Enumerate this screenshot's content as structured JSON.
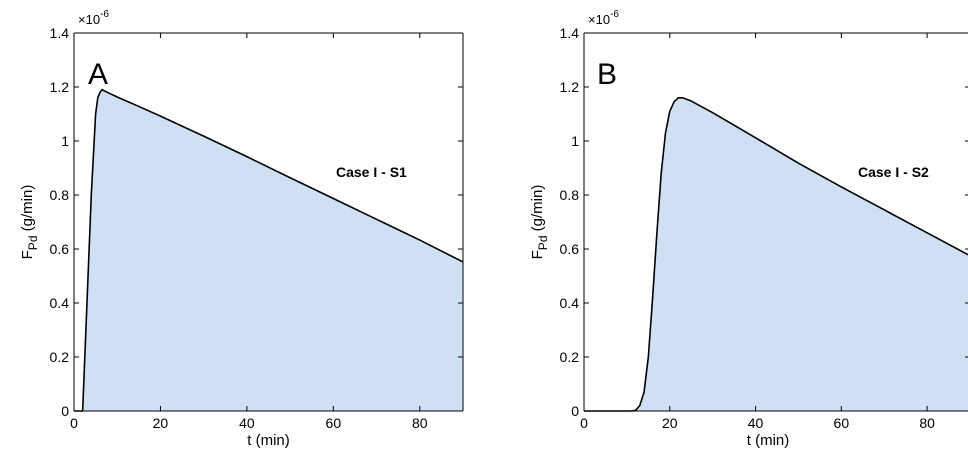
{
  "chart_data": [
    {
      "type": "area",
      "panel_label": "A",
      "annotation": "Case I - S1",
      "xlabel": "t  (min)",
      "ylabel_main": "F",
      "ylabel_sub": "Pd",
      "ylabel_unit": " (g/min)",
      "y_exponent_base": "×10",
      "y_exponent": "-6",
      "xlim": [
        0,
        90
      ],
      "ylim": [
        0,
        1.4
      ],
      "xticks": [
        0,
        20,
        40,
        60,
        80
      ],
      "yticks": [
        0,
        0.2,
        0.4,
        0.6,
        0.8,
        1,
        1.2,
        1.4
      ],
      "xtick_labels": [
        "0",
        "20",
        "40",
        "60",
        "80"
      ],
      "ytick_labels": [
        "0",
        "0.2",
        "0.4",
        "0.6",
        "0.8",
        "1",
        "1.2",
        "1.4"
      ],
      "fill_color": "#cfe0f5",
      "line_color": "#000000",
      "x": [
        2,
        3,
        4,
        5,
        5.5,
        6,
        6.5,
        8,
        10,
        15,
        20,
        25,
        30,
        40,
        50,
        60,
        70,
        80,
        90
      ],
      "y": [
        0,
        0.4,
        0.8,
        1.1,
        1.16,
        1.18,
        1.19,
        1.178,
        1.163,
        1.128,
        1.092,
        1.055,
        1.018,
        0.942,
        0.864,
        0.787,
        0.71,
        0.633,
        0.552
      ]
    },
    {
      "type": "area",
      "panel_label": "B",
      "annotation": "Case I - S2",
      "xlabel": "t  (min)",
      "ylabel_main": "F",
      "ylabel_sub": "Pd",
      "ylabel_unit": " (g/min)",
      "y_exponent_base": "×10",
      "y_exponent": "-6",
      "xlim": [
        0,
        90
      ],
      "ylim": [
        0,
        1.4
      ],
      "xticks": [
        0,
        20,
        40,
        60,
        80
      ],
      "yticks": [
        0,
        0.2,
        0.4,
        0.6,
        0.8,
        1,
        1.2,
        1.4
      ],
      "xtick_labels": [
        "0",
        "20",
        "40",
        "60",
        "80"
      ],
      "ytick_labels": [
        "0",
        "0.2",
        "0.4",
        "0.6",
        "0.8",
        "1",
        "1.2",
        "1.4"
      ],
      "fill_color": "#cfe0f5",
      "line_color": "#000000",
      "x": [
        0,
        11,
        12,
        13,
        14,
        15,
        16,
        17,
        18,
        19,
        20,
        21,
        22,
        23,
        25,
        30,
        40,
        50,
        60,
        70,
        80,
        90
      ],
      "y": [
        0,
        0,
        0.002,
        0.02,
        0.07,
        0.2,
        0.42,
        0.66,
        0.88,
        1.03,
        1.11,
        1.145,
        1.16,
        1.16,
        1.148,
        1.105,
        1.012,
        0.918,
        0.83,
        0.745,
        0.66,
        0.575
      ]
    }
  ]
}
